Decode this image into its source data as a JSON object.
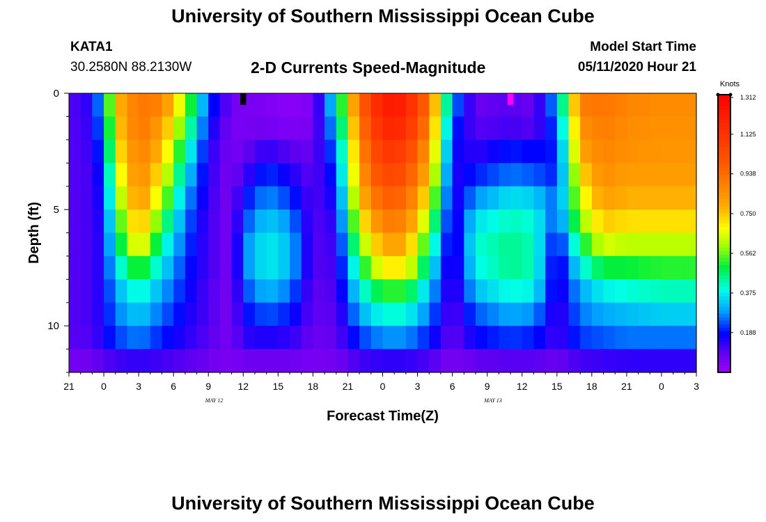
{
  "header": {
    "title": "University of Southern Mississippi Ocean Cube",
    "station": "KATA1",
    "coordinates": "30.2580N 88.2130W",
    "subtitle": "2-D Currents Speed-Magnitude",
    "model_start_label": "Model Start Time",
    "model_start_value": "05/11/2020 Hour 21"
  },
  "footer": {
    "title": "University of Southern Mississippi Ocean Cube"
  },
  "chart_data": {
    "type": "heatmap",
    "title": "2-D Currents Speed-Magnitude",
    "xlabel": "Forecast Time(Z)",
    "ylabel": "Depth (ft)",
    "x_tick_labels": [
      "21",
      "0",
      "3",
      "6",
      "9",
      "12",
      "15",
      "18",
      "21",
      "0",
      "3",
      "6",
      "9",
      "12",
      "15",
      "18",
      "21",
      "0",
      "3"
    ],
    "x_range_hours": [
      0,
      54
    ],
    "date_annotations": [
      {
        "label": "MAY 12",
        "hour": 15
      },
      {
        "label": "MAY 13",
        "hour": 39
      }
    ],
    "y_tick_labels": [
      "0",
      "5",
      "10"
    ],
    "y_range_ft": [
      0,
      12
    ],
    "colorbar": {
      "unit_label": "Knots",
      "min": 0,
      "max": 1.312,
      "tick_labels": [
        "1.312",
        "1.125",
        "0.938",
        "0.750",
        "0.562",
        "0.375",
        "0.188"
      ],
      "tick_values": [
        1.312,
        1.125,
        0.938,
        0.75,
        0.562,
        0.375,
        0.188
      ]
    },
    "depth_levels_ft": [
      0.5,
      1.5,
      2.5,
      3.5,
      4.5,
      5.5,
      6.5,
      7.5,
      8.5,
      9.5,
      10.5,
      11.5
    ],
    "speed_profiles": [
      {
        "hour": 0,
        "speeds": [
          0.1,
          0.1,
          0.1,
          0.1,
          0.1,
          0.1,
          0.1,
          0.1,
          0.1,
          0.1,
          0.1,
          0.07
        ]
      },
      {
        "hour": 2,
        "speeds": [
          0.15,
          0.14,
          0.13,
          0.12,
          0.12,
          0.12,
          0.12,
          0.12,
          0.12,
          0.12,
          0.11,
          0.08
        ]
      },
      {
        "hour": 3,
        "speeds": [
          0.35,
          0.3,
          0.26,
          0.22,
          0.2,
          0.18,
          0.17,
          0.17,
          0.17,
          0.17,
          0.16,
          0.1
        ]
      },
      {
        "hour": 4,
        "speeds": [
          0.75,
          0.72,
          0.68,
          0.62,
          0.55,
          0.48,
          0.42,
          0.36,
          0.3,
          0.26,
          0.22,
          0.12
        ]
      },
      {
        "hour": 6,
        "speeds": [
          0.92,
          0.92,
          0.9,
          0.88,
          0.85,
          0.8,
          0.72,
          0.55,
          0.42,
          0.34,
          0.27,
          0.14
        ]
      },
      {
        "hour": 8,
        "speeds": [
          0.88,
          0.82,
          0.76,
          0.7,
          0.62,
          0.52,
          0.43,
          0.36,
          0.3,
          0.25,
          0.2,
          0.12
        ]
      },
      {
        "hour": 10,
        "speeds": [
          0.6,
          0.52,
          0.44,
          0.36,
          0.3,
          0.26,
          0.23,
          0.21,
          0.19,
          0.17,
          0.15,
          0.1
        ]
      },
      {
        "hour": 12,
        "speeds": [
          0.22,
          0.18,
          0.15,
          0.14,
          0.13,
          0.12,
          0.12,
          0.12,
          0.11,
          0.11,
          0.1,
          0.08
        ]
      },
      {
        "hour": 14,
        "speeds": [
          0.07,
          0.06,
          0.06,
          0.06,
          0.06,
          0.06,
          0.06,
          0.06,
          0.06,
          0.06,
          0.06,
          0.05
        ]
      },
      {
        "hour": 15,
        "speeds": [
          0.06,
          0.06,
          0.08,
          0.12,
          0.18,
          0.22,
          0.26,
          0.26,
          0.22,
          0.18,
          0.14,
          0.08
        ]
      },
      {
        "hour": 17,
        "speeds": [
          0.05,
          0.07,
          0.14,
          0.22,
          0.28,
          0.34,
          0.38,
          0.38,
          0.32,
          0.24,
          0.16,
          0.08
        ]
      },
      {
        "hour": 19,
        "speeds": [
          0.03,
          0.05,
          0.1,
          0.16,
          0.22,
          0.28,
          0.32,
          0.32,
          0.26,
          0.2,
          0.14,
          0.08
        ]
      },
      {
        "hour": 21,
        "speeds": [
          0.05,
          0.06,
          0.08,
          0.09,
          0.1,
          0.1,
          0.1,
          0.1,
          0.09,
          0.09,
          0.08,
          0.06
        ]
      },
      {
        "hour": 23,
        "speeds": [
          0.38,
          0.32,
          0.26,
          0.22,
          0.18,
          0.15,
          0.13,
          0.12,
          0.11,
          0.1,
          0.09,
          0.07
        ]
      },
      {
        "hour": 25,
        "speeds": [
          0.95,
          0.9,
          0.86,
          0.82,
          0.76,
          0.68,
          0.58,
          0.47,
          0.38,
          0.3,
          0.22,
          0.12
        ]
      },
      {
        "hour": 27,
        "speeds": [
          1.22,
          1.18,
          1.12,
          1.06,
          0.98,
          0.9,
          0.8,
          0.7,
          0.52,
          0.4,
          0.28,
          0.14
        ]
      },
      {
        "hour": 29,
        "speeds": [
          1.2,
          1.15,
          1.08,
          1.02,
          0.95,
          0.88,
          0.8,
          0.7,
          0.52,
          0.4,
          0.28,
          0.14
        ]
      },
      {
        "hour": 31,
        "speeds": [
          0.92,
          0.88,
          0.82,
          0.76,
          0.68,
          0.58,
          0.48,
          0.4,
          0.32,
          0.26,
          0.2,
          0.11
        ]
      },
      {
        "hour": 33,
        "speeds": [
          0.28,
          0.22,
          0.18,
          0.15,
          0.13,
          0.12,
          0.11,
          0.1,
          0.1,
          0.09,
          0.08,
          0.06
        ]
      },
      {
        "hour": 35,
        "speeds": [
          0.08,
          0.1,
          0.14,
          0.2,
          0.28,
          0.36,
          0.4,
          0.38,
          0.32,
          0.24,
          0.18,
          0.09
        ]
      },
      {
        "hour": 38,
        "speeds": [
          0.1,
          0.12,
          0.2,
          0.26,
          0.36,
          0.42,
          0.45,
          0.45,
          0.4,
          0.3,
          0.22,
          0.1
        ]
      },
      {
        "hour": 40,
        "speeds": [
          0.08,
          0.1,
          0.18,
          0.24,
          0.34,
          0.4,
          0.42,
          0.42,
          0.38,
          0.28,
          0.2,
          0.1
        ]
      },
      {
        "hour": 42,
        "speeds": [
          0.3,
          0.24,
          0.2,
          0.2,
          0.24,
          0.22,
          0.16,
          0.13,
          0.13,
          0.12,
          0.12,
          0.08
        ]
      },
      {
        "hour": 44,
        "speeds": [
          0.9,
          0.85,
          0.8,
          0.72,
          0.65,
          0.58,
          0.48,
          0.38,
          0.3,
          0.26,
          0.22,
          0.12
        ]
      },
      {
        "hour": 46,
        "speeds": [
          0.92,
          0.9,
          0.88,
          0.86,
          0.82,
          0.75,
          0.65,
          0.5,
          0.38,
          0.3,
          0.24,
          0.13
        ]
      },
      {
        "hour": 48,
        "speeds": [
          0.88,
          0.86,
          0.85,
          0.82,
          0.78,
          0.72,
          0.62,
          0.5,
          0.4,
          0.32,
          0.26,
          0.14
        ]
      },
      {
        "hour": 51,
        "speeds": [
          0.86,
          0.85,
          0.84,
          0.82,
          0.78,
          0.72,
          0.62,
          0.52,
          0.42,
          0.34,
          0.26,
          0.14
        ]
      },
      {
        "hour": 54,
        "speeds": [
          0.86,
          0.85,
          0.84,
          0.82,
          0.78,
          0.72,
          0.62,
          0.52,
          0.42,
          0.34,
          0.26,
          0.14
        ]
      }
    ],
    "highlight_cells": [
      {
        "hour": 15,
        "depth_ft": 0.25,
        "speed": 1.4
      },
      {
        "hour": 38,
        "depth_ft": 0.25,
        "speed": 0.02
      }
    ]
  }
}
